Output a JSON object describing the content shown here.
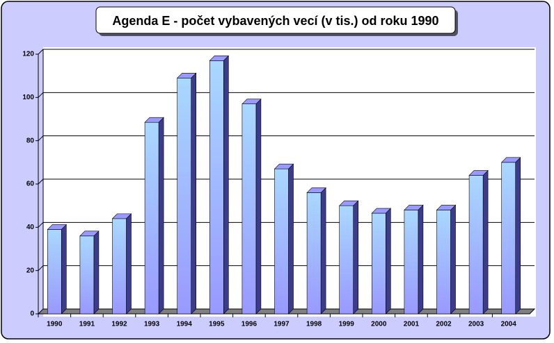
{
  "chart_data": {
    "type": "bar3d",
    "title": "Agenda E - počet vybavených vecí (v tis.) od roku 1990",
    "categories": [
      "1990",
      "1991",
      "1992",
      "1993",
      "1994",
      "1995",
      "1996",
      "1997",
      "1998",
      "1999",
      "2000",
      "2001",
      "2002",
      "2003",
      "2004"
    ],
    "values": [
      39,
      36,
      44,
      88.5,
      109,
      117,
      97,
      67,
      56,
      50,
      46.5,
      48,
      48,
      64,
      70
    ],
    "color": "#9999ff",
    "ylim": [
      0,
      120
    ],
    "yticks": [
      0,
      20,
      40,
      60,
      80,
      100,
      120
    ],
    "grid": true
  }
}
